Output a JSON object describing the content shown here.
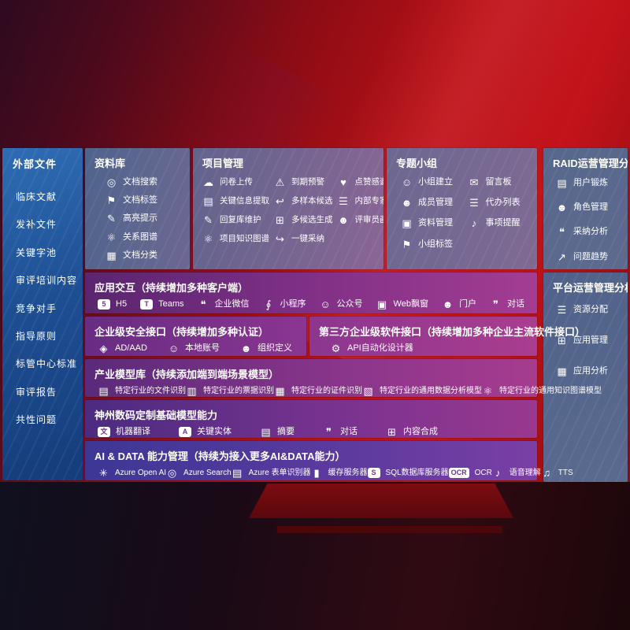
{
  "colors": {
    "background_red": "#b81114",
    "sidebar_blue": "#1e4f93",
    "panel_slate": "#5a6a8e",
    "row_purple": "#7c2f85",
    "row_indigo": "#3c3795",
    "text": "#ffffff"
  },
  "sidebar": {
    "title": "外部文件",
    "items": [
      "临床文献",
      "发补文件",
      "关键字池",
      "审评培训内容",
      "竞争对手",
      "指导原则",
      "标管中心标准",
      "审评报告",
      "共性问题"
    ]
  },
  "panels": {
    "repository": {
      "title": "资料库",
      "items": [
        {
          "icon": "doc-search-icon",
          "label": "文档搜索"
        },
        {
          "icon": "doc-tag-icon",
          "label": "文档标签"
        },
        {
          "icon": "highlight-icon",
          "label": "高亮提示"
        },
        {
          "icon": "relation-graph-icon",
          "label": "关系图谱"
        },
        {
          "icon": "doc-classify-icon",
          "label": "文档分类"
        }
      ]
    },
    "project": {
      "title": "项目管理",
      "col1": [
        {
          "icon": "cloud-upload-icon",
          "label": "问卷上传"
        },
        {
          "icon": "key-info-icon",
          "label": "关键信息提取"
        },
        {
          "icon": "reply-edit-icon",
          "label": "回复库维护"
        },
        {
          "icon": "knowledge-graph-icon",
          "label": "项目知识图谱"
        }
      ],
      "col2": [
        {
          "icon": "due-alarm-icon",
          "label": "到期预警"
        },
        {
          "icon": "multi-sample-icon",
          "label": "多样本候选"
        },
        {
          "icon": "multi-generate-icon",
          "label": "多候选生成"
        },
        {
          "icon": "one-click-adopt-icon",
          "label": "一键采纳"
        }
      ],
      "col3": [
        {
          "icon": "thumb-up-icon",
          "label": "点赞感谢"
        },
        {
          "icon": "expert-rank-icon",
          "label": "内部专家排名"
        },
        {
          "icon": "reviewer-profile-icon",
          "label": "评审员画像"
        }
      ]
    },
    "groups": {
      "title": "专题小组",
      "col1": [
        {
          "icon": "group-create-icon",
          "label": "小组建立"
        },
        {
          "icon": "member-manage-icon",
          "label": "成员管理"
        },
        {
          "icon": "material-manage-icon",
          "label": "资料管理"
        },
        {
          "icon": "group-tag-icon",
          "label": "小组标签"
        }
      ],
      "col2": [
        {
          "icon": "message-board-icon",
          "label": "留言板"
        },
        {
          "icon": "todo-list-icon",
          "label": "代办列表"
        },
        {
          "icon": "reminder-bell-icon",
          "label": "事项提醒"
        }
      ]
    },
    "raid": {
      "title": "RAID运营管理分析",
      "items": [
        {
          "icon": "user-card-icon",
          "label": "用户锻炼"
        },
        {
          "icon": "role-manage-icon",
          "label": "角色管理"
        },
        {
          "icon": "adopt-analysis-icon",
          "label": "采纳分析"
        },
        {
          "icon": "issue-trend-icon",
          "label": "问题趋势"
        }
      ]
    },
    "platform": {
      "title": "平台运营管理分析",
      "items": [
        {
          "icon": "resource-alloc-icon",
          "label": "资源分配"
        },
        {
          "icon": "app-manage-icon",
          "label": "应用管理"
        },
        {
          "icon": "app-analysis-icon",
          "label": "应用分析"
        }
      ]
    },
    "interaction": {
      "title": "应用交互（持续增加多种客户端）",
      "items": [
        {
          "icon": "h5-icon",
          "label": "H5"
        },
        {
          "icon": "teams-icon",
          "label": "Teams"
        },
        {
          "icon": "wechat-work-icon",
          "label": "企业微信"
        },
        {
          "icon": "miniprogram-icon",
          "label": "小程序"
        },
        {
          "icon": "official-account-icon",
          "label": "公众号"
        },
        {
          "icon": "web-popup-icon",
          "label": "Web飘窗"
        },
        {
          "icon": "portal-icon",
          "label": "门户"
        },
        {
          "icon": "chat-icon",
          "label": "对话"
        }
      ]
    },
    "security": {
      "title": "企业级安全接口（持续增加多种认证）",
      "items": [
        {
          "icon": "ad-aad-icon",
          "label": "AD/AAD"
        },
        {
          "icon": "local-account-icon",
          "label": "本地账号"
        },
        {
          "icon": "org-define-icon",
          "label": "组织定义"
        }
      ]
    },
    "thirdparty": {
      "title": "第三方企业级软件接口（持续增加多种企业主流软件接口）",
      "items": [
        {
          "icon": "api-designer-icon",
          "label": "API自动化设计器"
        }
      ]
    },
    "industry": {
      "title": "产业模型库（持续添加端到端场景模型）",
      "items": [
        {
          "icon": "file-recognize-icon",
          "label": "特定行业的文件识别"
        },
        {
          "icon": "invoice-recognize-icon",
          "label": "特定行业的票据识别"
        },
        {
          "icon": "certificate-recognize-icon",
          "label": "特定行业的证件识别"
        },
        {
          "icon": "data-analysis-model-icon",
          "label": "特定行业的通用数据分析模型"
        },
        {
          "icon": "knowledge-graph-model-icon",
          "label": "特定行业的通用知识图谱模型"
        }
      ]
    },
    "base": {
      "title": "神州数码定制基础模型能力",
      "items": [
        {
          "icon": "machine-translate-icon",
          "label": "机器翻译"
        },
        {
          "icon": "key-entity-icon",
          "label": "关键实体"
        },
        {
          "icon": "summary-icon",
          "label": "摘要"
        },
        {
          "icon": "chat-icon",
          "label": "对话"
        },
        {
          "icon": "content-synthesis-icon",
          "label": "内容合成"
        }
      ]
    },
    "ai": {
      "title": "AI & DATA 能力管理（持续为接入更多AI&DATA能力）",
      "items": [
        {
          "icon": "azure-openai-icon",
          "label": "Azure Open AI"
        },
        {
          "icon": "azure-search-icon",
          "label": "Azure Search"
        },
        {
          "icon": "azure-form-icon",
          "label": "Azure 表单识别器"
        },
        {
          "icon": "cache-server-icon",
          "label": "缓存服务器"
        },
        {
          "icon": "sql-server-icon",
          "label": "SQL数据库服务器"
        },
        {
          "icon": "ocr-icon",
          "label": "OCR"
        },
        {
          "icon": "speech-icon",
          "label": "语音理解"
        },
        {
          "icon": "tts-icon",
          "label": "TTS"
        }
      ]
    }
  }
}
